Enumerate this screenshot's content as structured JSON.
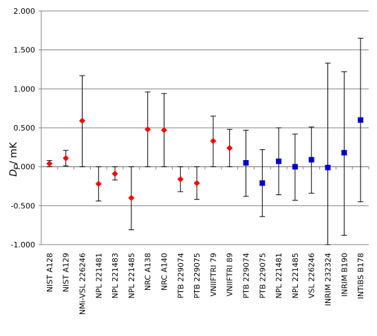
{
  "chart_data": {
    "type": "scatter",
    "ylabel": {
      "symbol": "D",
      "subscript": "i",
      "unit": " / mK"
    },
    "ylim": [
      -1.0,
      2.0
    ],
    "yticks": [
      "-1.000",
      "-0.500",
      "0.000",
      "0.500",
      "1.000",
      "1.500",
      "2.000"
    ],
    "grid": true,
    "categories": [
      "NIST A128",
      "NIST A129",
      "NMi-VSL 226246",
      "NPL 221481",
      "NPL 221483",
      "NPL 221485",
      "NRC A138",
      "NRC A140",
      "PTB 229074",
      "PTB 229075",
      "VNIIFTRI 79",
      "VNIIFTRI 89",
      "PTB 229074",
      "PTB 229075",
      "NPL 221481",
      "NPL 221485",
      "VSL 226246",
      "INRIM 232324",
      "INRIM B190",
      "INTiBS B178"
    ],
    "series": [
      {
        "marker": "diamond",
        "color": "#ff0000",
        "points": [
          {
            "i": 0,
            "y": 0.04,
            "lo": 0.0,
            "hi": 0.08
          },
          {
            "i": 1,
            "y": 0.11,
            "lo": 0.01,
            "hi": 0.21
          },
          {
            "i": 2,
            "y": 0.59,
            "lo": 0.0,
            "hi": 1.17
          },
          {
            "i": 3,
            "y": -0.22,
            "lo": -0.44,
            "hi": 0.0
          },
          {
            "i": 4,
            "y": -0.09,
            "lo": -0.17,
            "hi": 0.0
          },
          {
            "i": 5,
            "y": -0.4,
            "lo": -0.81,
            "hi": 0.0
          },
          {
            "i": 6,
            "y": 0.48,
            "lo": 0.0,
            "hi": 0.96
          },
          {
            "i": 7,
            "y": 0.47,
            "lo": 0.0,
            "hi": 0.94
          },
          {
            "i": 8,
            "y": -0.16,
            "lo": -0.32,
            "hi": 0.0
          },
          {
            "i": 9,
            "y": -0.21,
            "lo": -0.42,
            "hi": 0.0
          },
          {
            "i": 10,
            "y": 0.33,
            "lo": 0.0,
            "hi": 0.65
          },
          {
            "i": 11,
            "y": 0.24,
            "lo": 0.0,
            "hi": 0.48
          }
        ]
      },
      {
        "marker": "square",
        "color": "#0000cc",
        "points": [
          {
            "i": 12,
            "y": 0.05,
            "lo": -0.38,
            "hi": 0.47
          },
          {
            "i": 13,
            "y": -0.21,
            "lo": -0.64,
            "hi": 0.22
          },
          {
            "i": 14,
            "y": 0.07,
            "lo": -0.36,
            "hi": 0.5
          },
          {
            "i": 15,
            "y": 0.0,
            "lo": -0.43,
            "hi": 0.42
          },
          {
            "i": 16,
            "y": 0.09,
            "lo": -0.34,
            "hi": 0.51
          },
          {
            "i": 17,
            "y": -0.01,
            "lo": -1.0,
            "hi": 1.33
          },
          {
            "i": 18,
            "y": 0.18,
            "lo": -0.88,
            "hi": 1.22
          },
          {
            "i": 19,
            "y": 0.6,
            "lo": -0.45,
            "hi": 1.65
          }
        ]
      }
    ]
  }
}
